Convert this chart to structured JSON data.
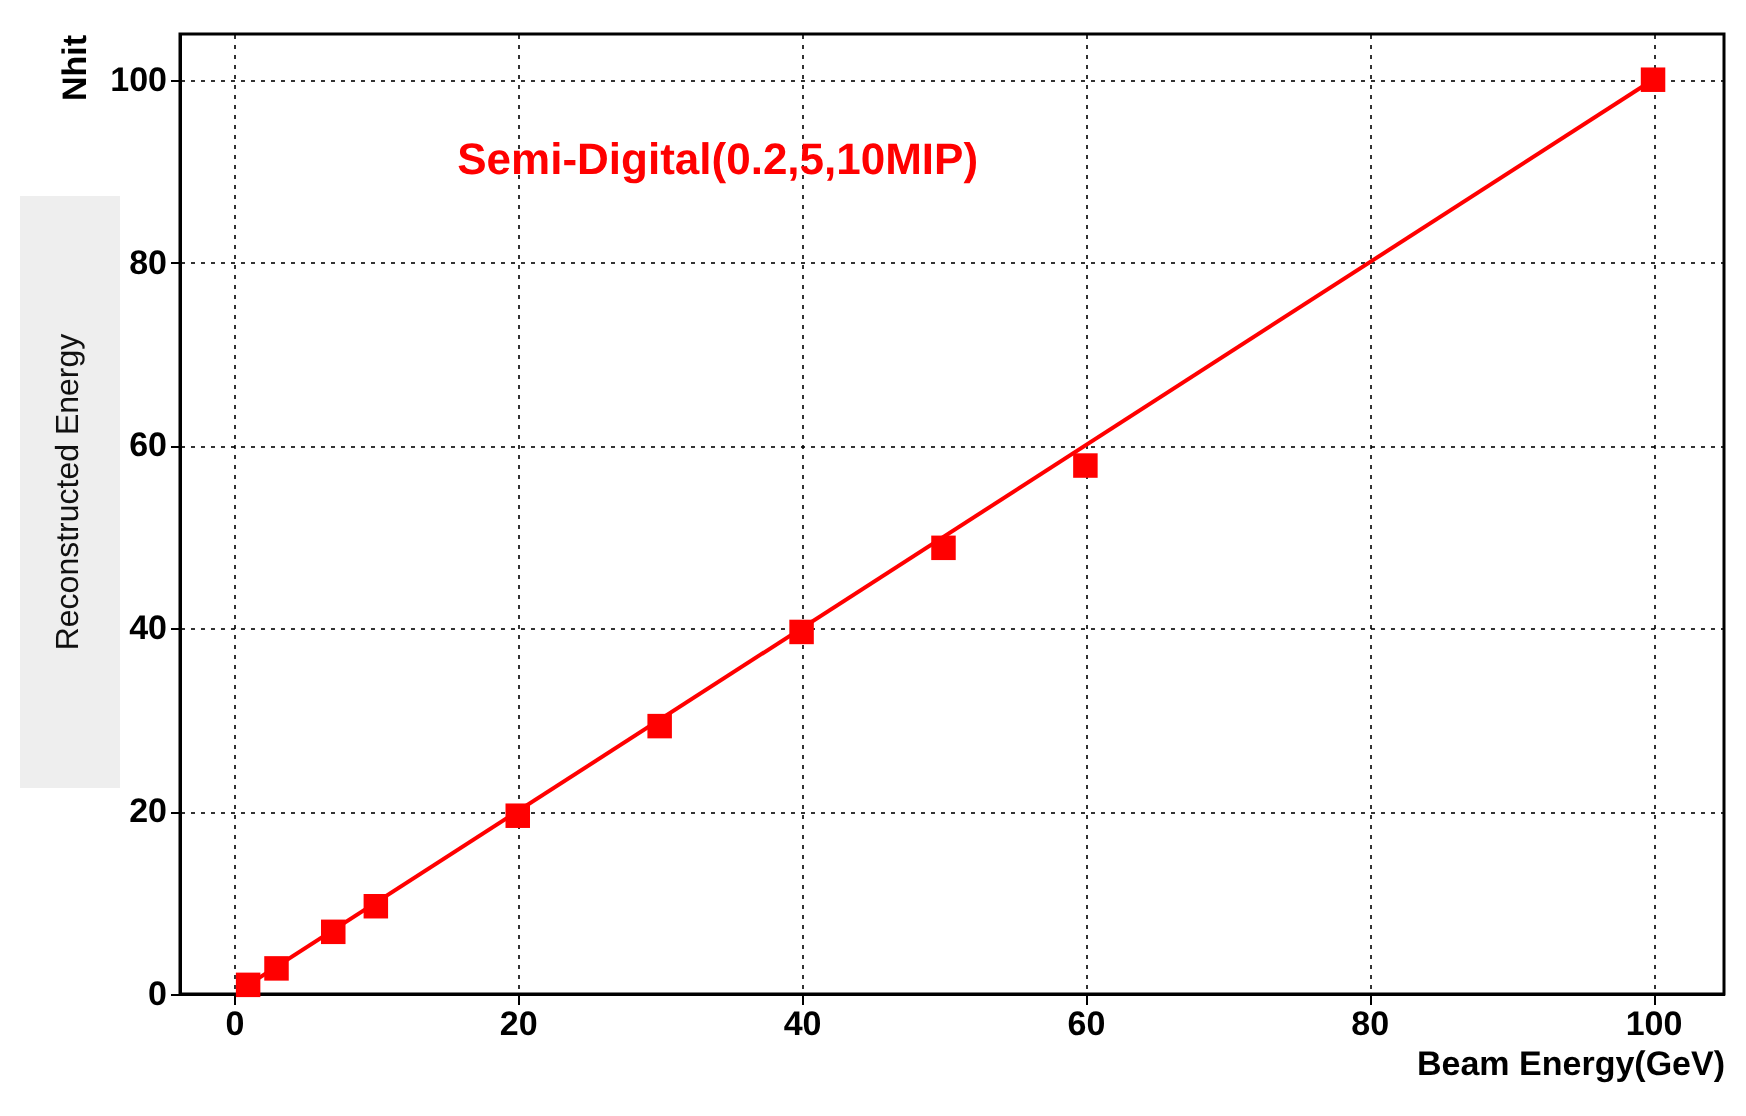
{
  "chart_data": {
    "type": "scatter",
    "title": "Semi-Digital(0.2,5,10MIP)",
    "xlabel": "Beam Energy(GeV)",
    "ylabel": "Nhit",
    "annotations": [
      "Reconstructed Energy"
    ],
    "x": [
      1,
      3,
      7,
      10,
      20,
      30,
      40,
      50,
      60,
      100
    ],
    "series": [
      {
        "color": "#ff0000",
        "values": [
          1,
          2.8,
          6.8,
          9.6,
          19.5,
          29.3,
          39.6,
          48.8,
          57.8,
          100
        ]
      },
      {
        "type": "line",
        "color": "#ff0000",
        "x": [
          1,
          100
        ],
        "values": [
          1,
          100
        ],
        "marker": "none"
      }
    ],
    "xlim": [
      -3.8,
      105
    ],
    "xticks": [
      0,
      20,
      40,
      60,
      80,
      100
    ],
    "ylim": [
      0,
      105
    ],
    "yticks": [
      0,
      20,
      40,
      60,
      80,
      100
    ],
    "grid": true,
    "marker": "square",
    "line_style": "solid"
  }
}
